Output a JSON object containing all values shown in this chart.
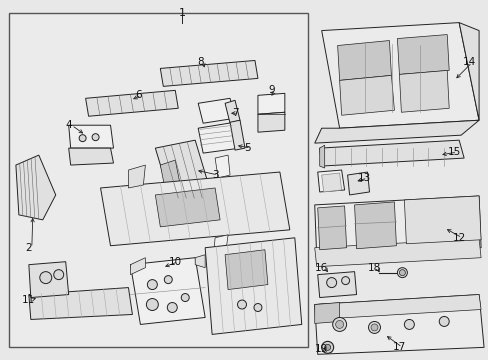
{
  "bg_color": "#e8e8e8",
  "fig_width": 4.89,
  "fig_height": 3.6,
  "dpi": 100,
  "label_fontsize": 7.5,
  "line_color": "#222222",
  "fill_light": "#f0f0f0",
  "fill_mid": "#e0e0e0",
  "fill_dark": "#c8c8c8",
  "box_border": "#444444"
}
